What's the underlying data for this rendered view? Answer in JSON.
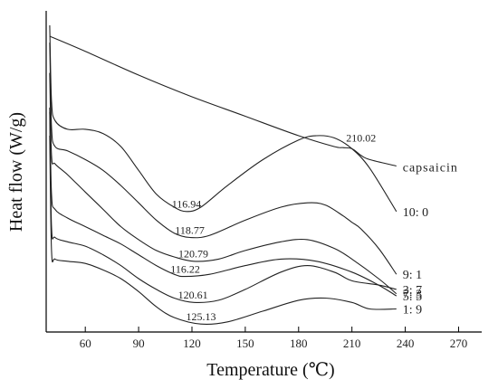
{
  "chart_data": {
    "type": "line",
    "title": "",
    "xlabel": "Temperature (℃)",
    "ylabel": "Heat flow (W/g)",
    "xlim": [
      38,
      283
    ],
    "xticks": [
      "60",
      "90",
      "120",
      "150",
      "180",
      "210",
      "240",
      "270"
    ],
    "x_tick_values": [
      60,
      90,
      120,
      150,
      180,
      210,
      240,
      270
    ],
    "y_ticks_shown": false,
    "grid": false,
    "series": [
      {
        "name": "capsaicin",
        "x": [
          40,
          60,
          90,
          120,
          150,
          180,
          200,
          205,
          210,
          215,
          220,
          235
        ],
        "y": [
          0.95,
          0.88,
          0.77,
          0.67,
          0.58,
          0.49,
          0.44,
          0.435,
          0.43,
          0.4,
          0.38,
          0.35
        ]
      },
      {
        "name": "10: 0",
        "x": [
          40,
          41,
          43,
          50,
          60,
          70,
          80,
          90,
          100,
          110,
          117,
          125,
          140,
          160,
          180,
          190,
          200,
          210,
          220,
          235
        ],
        "y": [
          1.0,
          0.65,
          0.56,
          0.52,
          0.52,
          0.5,
          0.44,
          0.33,
          0.22,
          0.16,
          0.14,
          0.16,
          0.26,
          0.38,
          0.47,
          0.49,
          0.48,
          0.43,
          0.34,
          0.14
        ]
      },
      {
        "name": "9: 1",
        "x": [
          40,
          41,
          43,
          50,
          60,
          70,
          80,
          90,
          100,
          110,
          119,
          130,
          150,
          170,
          185,
          195,
          205,
          210,
          215,
          225,
          235
        ],
        "y": [
          0.92,
          0.53,
          0.44,
          0.42,
          0.38,
          0.33,
          0.26,
          0.18,
          0.1,
          0.04,
          0.02,
          0.03,
          0.1,
          0.16,
          0.18,
          0.17,
          0.12,
          0.09,
          0.06,
          -0.03,
          -0.15
        ]
      },
      {
        "name": "7: 3",
        "x": [
          40,
          41,
          43,
          50,
          60,
          70,
          80,
          90,
          100,
          110,
          121,
          135,
          150,
          170,
          185,
          200,
          210,
          225,
          235
        ],
        "y": [
          0.78,
          0.4,
          0.36,
          0.31,
          0.23,
          0.15,
          0.07,
          0.01,
          -0.04,
          -0.07,
          -0.09,
          -0.08,
          -0.04,
          0.0,
          0.01,
          -0.03,
          -0.08,
          -0.17,
          -0.24
        ]
      },
      {
        "name": "5: 5",
        "x": [
          40,
          41,
          43,
          50,
          60,
          70,
          80,
          90,
          100,
          110,
          116,
          130,
          150,
          170,
          190,
          210,
          225,
          235
        ],
        "y": [
          0.62,
          0.22,
          0.15,
          0.11,
          0.07,
          0.03,
          -0.01,
          -0.06,
          -0.11,
          -0.15,
          -0.16,
          -0.15,
          -0.11,
          -0.08,
          -0.09,
          -0.14,
          -0.2,
          -0.25
        ]
      },
      {
        "name": "3: 7",
        "x": [
          40,
          41,
          43,
          50,
          60,
          70,
          80,
          90,
          100,
          110,
          121,
          135,
          150,
          170,
          185,
          200,
          210,
          225,
          235
        ],
        "y": [
          0.6,
          0.07,
          0.02,
          0.0,
          -0.02,
          -0.06,
          -0.11,
          -0.17,
          -0.22,
          -0.26,
          -0.28,
          -0.27,
          -0.22,
          -0.14,
          -0.11,
          -0.14,
          -0.18,
          -0.2,
          -0.22
        ]
      },
      {
        "name": "1: 9",
        "x": [
          40,
          41,
          43,
          50,
          60,
          70,
          80,
          90,
          100,
          110,
          125,
          140,
          160,
          180,
          195,
          210,
          220,
          235
        ],
        "y": [
          0.49,
          -0.04,
          -0.08,
          -0.09,
          -0.1,
          -0.13,
          -0.17,
          -0.23,
          -0.3,
          -0.35,
          -0.38,
          -0.37,
          -0.32,
          -0.27,
          -0.26,
          -0.28,
          -0.31,
          -0.31
        ]
      }
    ],
    "annotations": [
      {
        "text": "210.02",
        "x": 210.02,
        "series": "capsaicin"
      },
      {
        "text": "116.94",
        "x": 116.94,
        "series": "10: 0"
      },
      {
        "text": "118.77",
        "x": 118.77,
        "series": "9: 1"
      },
      {
        "text": "120.79",
        "x": 120.79,
        "series": "7: 3"
      },
      {
        "text": "116.22",
        "x": 116.22,
        "series": "5: 5"
      },
      {
        "text": "120.61",
        "x": 120.61,
        "series": "3: 7"
      },
      {
        "text": "125.13",
        "x": 125.13,
        "series": "1: 9"
      }
    ]
  }
}
